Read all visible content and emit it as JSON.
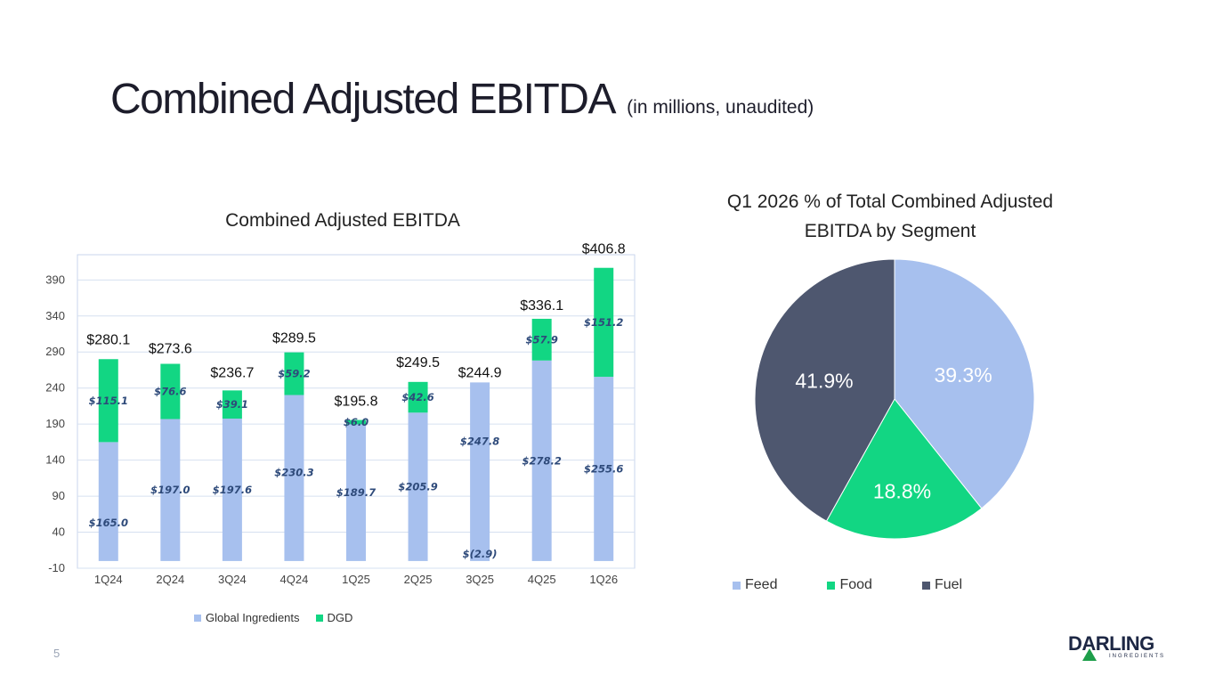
{
  "header": {
    "title": "Combined Adjusted EBITDA",
    "subtitle": "(in millions, unaudited)"
  },
  "page_number": "5",
  "logo": {
    "name": "DARLING",
    "tagline": "INGREDIENTS"
  },
  "colors": {
    "global": "#a7c0ee",
    "dgd": "#12d683",
    "feed": "#a7c0ee",
    "food": "#12d683",
    "fuel": "#4e576f"
  },
  "chart_data": [
    {
      "type": "bar",
      "stacked": true,
      "title": "Combined Adjusted EBITDA",
      "categories": [
        "1Q24",
        "2Q24",
        "3Q24",
        "4Q24",
        "1Q25",
        "2Q25",
        "3Q25",
        "4Q25",
        "1Q26"
      ],
      "series": [
        {
          "name": "Global Ingredients",
          "values": [
            165.0,
            197.0,
            197.6,
            230.3,
            189.7,
            205.9,
            247.8,
            278.2,
            255.6
          ],
          "labels": [
            "$165.0",
            "$197.0",
            "$197.6",
            "$230.3",
            "$189.7",
            "$205.9",
            "$247.8",
            "$278.2",
            "$255.6"
          ]
        },
        {
          "name": "DGD",
          "values": [
            115.1,
            76.6,
            39.1,
            59.2,
            6.0,
            42.6,
            -2.9,
            57.9,
            151.2
          ],
          "labels": [
            "$115.1",
            "$76.6",
            "$39.1",
            "$59.2",
            "$6.0",
            "$42.6",
            "$(2.9)",
            "$57.9",
            "$151.2"
          ]
        }
      ],
      "totals": [
        "$280.1",
        "$273.6",
        "$236.7",
        "$289.5",
        "$195.8",
        "$249.5",
        "$244.9",
        "$336.1",
        "$406.8"
      ],
      "total_values": [
        280.1,
        273.6,
        236.7,
        289.5,
        195.8,
        249.5,
        244.9,
        336.1,
        406.8
      ],
      "yticks": [
        -10,
        40,
        90,
        140,
        190,
        240,
        290,
        340,
        390
      ],
      "ylim": [
        -10,
        425
      ],
      "grid": true,
      "legend": "bottom"
    },
    {
      "type": "pie",
      "title": "Q1 2026 % of Total Combined Adjusted EBITDA by Segment",
      "categories": [
        "Feed",
        "Food",
        "Fuel"
      ],
      "values": [
        39.3,
        18.8,
        41.9
      ],
      "labels": [
        "39.3%",
        "18.8%",
        "41.9%"
      ],
      "legend": "bottom"
    }
  ]
}
